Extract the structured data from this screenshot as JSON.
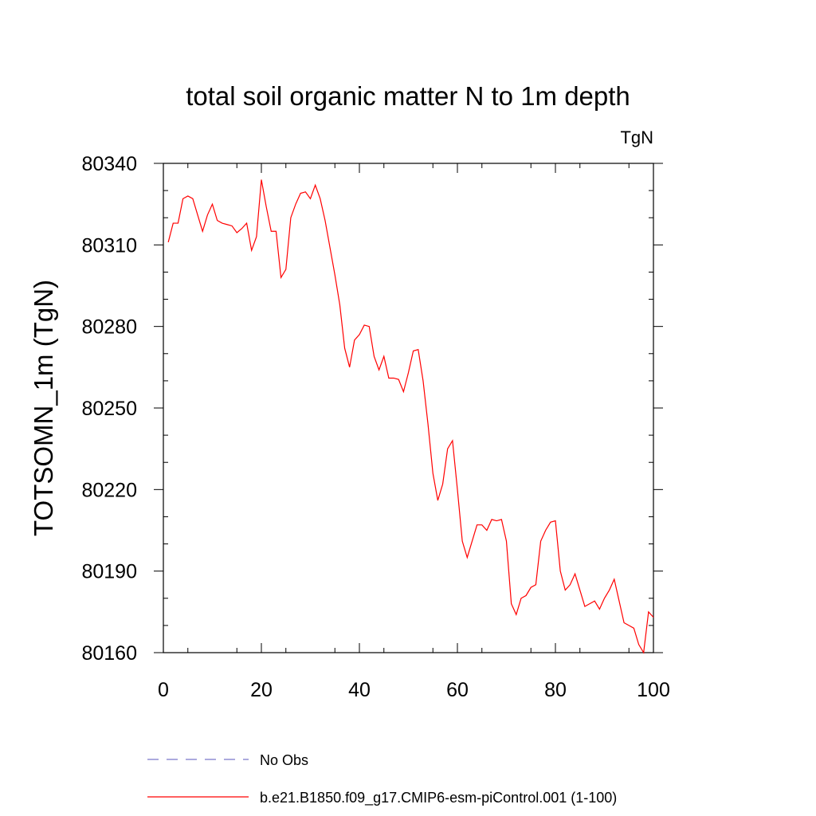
{
  "chart_data": {
    "type": "line",
    "title": "total soil organic matter N to 1m depth",
    "units_label": "TgN",
    "ylabel": "TOTSOMN_1m  (TgN)",
    "xlabel": "",
    "xlim": [
      0,
      100
    ],
    "ylim": [
      80160,
      80340
    ],
    "xticks": [
      0,
      20,
      40,
      60,
      80,
      100
    ],
    "xtick_labels": [
      "0",
      "20",
      "40",
      "60",
      "80",
      "100"
    ],
    "yticks": [
      80160,
      80190,
      80220,
      80250,
      80280,
      80310,
      80340
    ],
    "ytick_labels": [
      "80160",
      "80190",
      "80220",
      "80250",
      "80280",
      "80310",
      "80340"
    ],
    "grid": false,
    "legend_position": "bottom",
    "series": [
      {
        "name": "b.e21.B1850.f09_g17.CMIP6-esm-piControl.001 (1-100)",
        "color": "#ff0000",
        "style": "solid",
        "x": [
          1,
          2,
          3,
          4,
          5,
          6,
          7,
          8,
          9,
          10,
          11,
          12,
          13,
          14,
          15,
          16,
          17,
          18,
          19,
          20,
          21,
          22,
          23,
          24,
          25,
          26,
          27,
          28,
          29,
          30,
          31,
          32,
          33,
          34,
          35,
          36,
          37,
          38,
          39,
          40,
          41,
          42,
          43,
          44,
          45,
          46,
          47,
          48,
          49,
          50,
          51,
          52,
          53,
          54,
          55,
          56,
          57,
          58,
          59,
          60,
          61,
          62,
          63,
          64,
          65,
          66,
          67,
          68,
          69,
          70,
          71,
          72,
          73,
          74,
          75,
          76,
          77,
          78,
          79,
          80,
          81,
          82,
          83,
          84,
          85,
          86,
          87,
          88,
          89,
          90,
          91,
          92,
          93,
          94,
          95,
          96,
          97,
          98,
          99,
          100
        ],
        "values": [
          80311,
          80318,
          80318,
          80327,
          80328,
          80327,
          80321,
          80315,
          80321,
          80325,
          80319,
          80318,
          80317.5,
          80317,
          80314.5,
          80316,
          80318,
          80308,
          80313,
          80334,
          80324,
          80315,
          80315,
          80298,
          80301,
          80320,
          80325,
          80329,
          80329.5,
          80327,
          80332,
          80327,
          80319,
          80309,
          80299,
          80288,
          80272,
          80265,
          80275,
          80277,
          80280.5,
          80280,
          80269,
          80264,
          80269,
          80261,
          80261,
          80260.5,
          80256,
          80263,
          80271,
          80271.5,
          80260,
          80244,
          80226,
          80216,
          80222,
          80235,
          80238,
          80220,
          80201,
          80195,
          80201,
          80207,
          80207,
          80205,
          80209,
          80208.5,
          80209,
          80201,
          80178,
          80174,
          80180,
          80181,
          80184,
          80185,
          80201,
          80205,
          80208,
          80208.5,
          80190,
          80183,
          80185,
          80189,
          80183,
          80177,
          80178,
          80179,
          80176,
          80180,
          80183,
          80187,
          80179,
          80171,
          80170,
          80169,
          80163,
          80160,
          80175,
          80173
        ]
      },
      {
        "name": "No Obs",
        "color": "#7b77c9",
        "style": "dashed",
        "x": [],
        "values": []
      }
    ]
  }
}
